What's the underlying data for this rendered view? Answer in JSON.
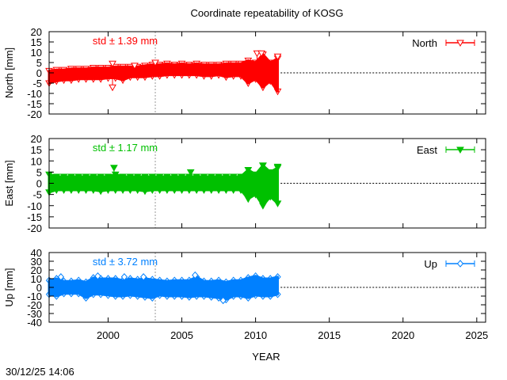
{
  "chart_data": {
    "type": "scatter",
    "title": "Coordinate repeatability of KOSG",
    "xlabel": "YEAR",
    "xlim": [
      1996,
      2025.6
    ],
    "xticks": [
      2000,
      2005,
      2010,
      2015,
      2020,
      2025
    ],
    "marker_line_x": 2003.2,
    "timestamp": "30/12/25 14:06",
    "x": [
      1996,
      1996.5,
      1997,
      1997.5,
      1998,
      1998.5,
      1999,
      1999.5,
      2000,
      2000.5,
      2001,
      2001.5,
      2002,
      2002.5,
      2003,
      2003.5,
      2004,
      2004.5,
      2005,
      2005.5,
      2006,
      2006.5,
      2007,
      2007.5,
      2008,
      2008.5,
      2009,
      2009.5,
      2010,
      2010.5,
      2011,
      2011.5
    ],
    "panels": [
      {
        "name": "North",
        "ylabel": "North [mm]",
        "ylim": [
          -20,
          20
        ],
        "yticks": [
          -20,
          -15,
          -10,
          -5,
          0,
          5,
          10,
          15,
          20
        ],
        "std_label": "std ± 1.39 mm",
        "legend": "North",
        "color": "#ff0000",
        "marker": "triangle-down-open",
        "lower": [
          -5,
          -4,
          -3.5,
          -3.5,
          -3,
          -3,
          -3,
          -3,
          -2.5,
          -2.5,
          -3.5,
          -2,
          -2,
          -2,
          -1.5,
          -1.5,
          -1,
          -1,
          -1,
          -1,
          -1,
          -1.5,
          -1.5,
          -1,
          -2,
          -1.5,
          -1.5,
          -5,
          -3,
          -7,
          -4,
          -9
        ],
        "upper": [
          1,
          1.5,
          1.5,
          2,
          2,
          2,
          2.5,
          2.5,
          2.5,
          3,
          3,
          3,
          3,
          3.5,
          4,
          4,
          4.5,
          4,
          4.5,
          4,
          4.5,
          4,
          4,
          4,
          4.5,
          4.5,
          4.5,
          6,
          5,
          9,
          5,
          7
        ],
        "outliers": [
          [
            2000.3,
            -7
          ],
          [
            2000.3,
            4.5
          ],
          [
            2001.8,
            3.5
          ],
          [
            2003.2,
            5
          ],
          [
            2010.1,
            9.5
          ],
          [
            2010.4,
            9.5
          ],
          [
            2011.5,
            8
          ]
        ]
      },
      {
        "name": "East",
        "ylabel": "East [mm]",
        "ylim": [
          -20,
          20
        ],
        "yticks": [
          -20,
          -15,
          -10,
          -5,
          0,
          5,
          10,
          15,
          20
        ],
        "std_label": "std ± 1.17 mm",
        "legend": "East",
        "color": "#00c000",
        "marker": "triangle-down-filled",
        "lower": [
          -4,
          -3,
          -3,
          -3,
          -3,
          -3,
          -3,
          -3.5,
          -3,
          -3,
          -3,
          -3,
          -3,
          -3.5,
          -3,
          -3,
          -3,
          -3,
          -3,
          -3,
          -3,
          -3,
          -3,
          -3,
          -3,
          -3,
          -3,
          -7,
          -5,
          -10,
          -6,
          -9
        ],
        "upper": [
          4,
          3,
          3,
          3,
          3,
          3,
          3,
          3,
          3,
          4,
          3,
          3,
          3,
          3,
          3,
          3,
          3,
          3,
          3,
          3,
          3,
          3,
          3,
          3,
          3,
          3,
          3,
          6,
          4,
          8,
          5,
          7
        ],
        "outliers": [
          [
            2000.4,
            7
          ],
          [
            2005.6,
            5
          ],
          [
            2010.5,
            8
          ],
          [
            2011.5,
            7.5
          ]
        ]
      },
      {
        "name": "Up",
        "ylabel": "Up [mm]",
        "ylim": [
          -40,
          40
        ],
        "yticks": [
          -40,
          -30,
          -20,
          -10,
          0,
          10,
          20,
          30,
          40
        ],
        "std_label": "std ± 3.72 mm",
        "legend": "Up",
        "color": "#0080ff",
        "marker": "diamond-open",
        "lower": [
          -8,
          -10,
          -7,
          -7,
          -7,
          -12,
          -8,
          -8,
          -9,
          -10,
          -10,
          -9,
          -10,
          -11,
          -12,
          -9,
          -10,
          -10,
          -10,
          -11,
          -10,
          -10,
          -11,
          -12,
          -14,
          -10,
          -10,
          -12,
          -9,
          -10,
          -10,
          -8
        ],
        "upper": [
          8,
          10,
          7,
          7,
          8,
          6,
          11,
          10,
          10,
          10,
          8,
          10,
          9,
          10,
          9,
          8,
          7,
          8,
          8,
          8,
          12,
          7,
          7,
          8,
          6,
          8,
          8,
          11,
          13,
          10,
          10,
          12
        ],
        "outliers": [
          [
            1996.8,
            12
          ],
          [
            1999.3,
            13
          ],
          [
            2001.1,
            12
          ],
          [
            2002.4,
            12
          ],
          [
            2005.9,
            14
          ],
          [
            2007.8,
            -15
          ]
        ]
      }
    ]
  }
}
